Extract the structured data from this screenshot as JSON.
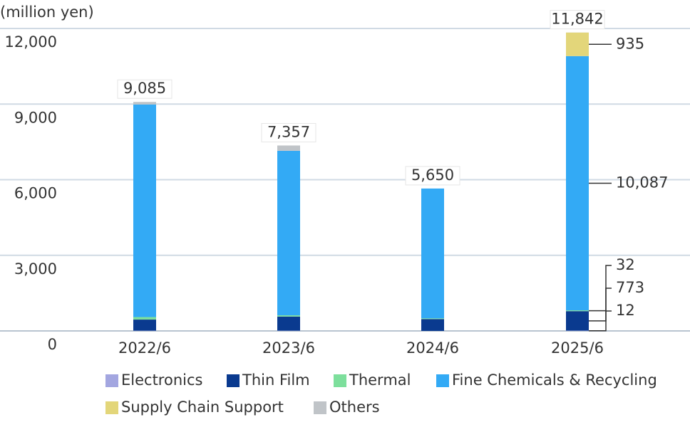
{
  "chart_data": {
    "type": "stacked-bar",
    "y_axis_label": "(million yen)",
    "categories": [
      "2022/6",
      "2023/6",
      "2024/6",
      "2025/6"
    ],
    "series": [
      {
        "name": "Electronics",
        "color": "#a3a6e0",
        "values": [
          10,
          10,
          0,
          12
        ],
        "value_labels": [
          null,
          null,
          null,
          "12"
        ]
      },
      {
        "name": "Thin Film",
        "color": "#0a3a8f",
        "values": [
          440,
          560,
          470,
          773
        ],
        "value_labels": [
          null,
          null,
          null,
          "773"
        ]
      },
      {
        "name": "Thermal",
        "color": "#7ddf9c",
        "values": [
          100,
          50,
          30,
          32
        ],
        "value_labels": [
          null,
          null,
          null,
          "32"
        ]
      },
      {
        "name": "Fine Chemicals & Recycling",
        "color": "#33aaf5",
        "values": [
          8435,
          6527,
          5150,
          10087
        ],
        "value_labels": [
          null,
          null,
          null,
          "10,087"
        ]
      },
      {
        "name": "Supply Chain Support",
        "color": "#e3d67a",
        "values": [
          0,
          0,
          0,
          935
        ],
        "value_labels": [
          null,
          null,
          null,
          "935"
        ]
      },
      {
        "name": "Others",
        "color": "#c0c4c8",
        "values": [
          100,
          210,
          0,
          3
        ],
        "value_labels": [
          null,
          null,
          null,
          null
        ]
      }
    ],
    "totals": [
      9085,
      7357,
      5650,
      11842
    ],
    "total_labels": [
      "9,085",
      "7,357",
      "5,650",
      "11,842"
    ],
    "ylim": [
      0,
      12000
    ],
    "yticks": [
      0,
      {
        "value": 3000,
        "label": "3,000"
      },
      {
        "value": 6000,
        "label": "6,000"
      },
      {
        "value": 9000,
        "label": "9,000"
      },
      {
        "value": 12000,
        "label": "12,000"
      }
    ],
    "grid": true
  }
}
